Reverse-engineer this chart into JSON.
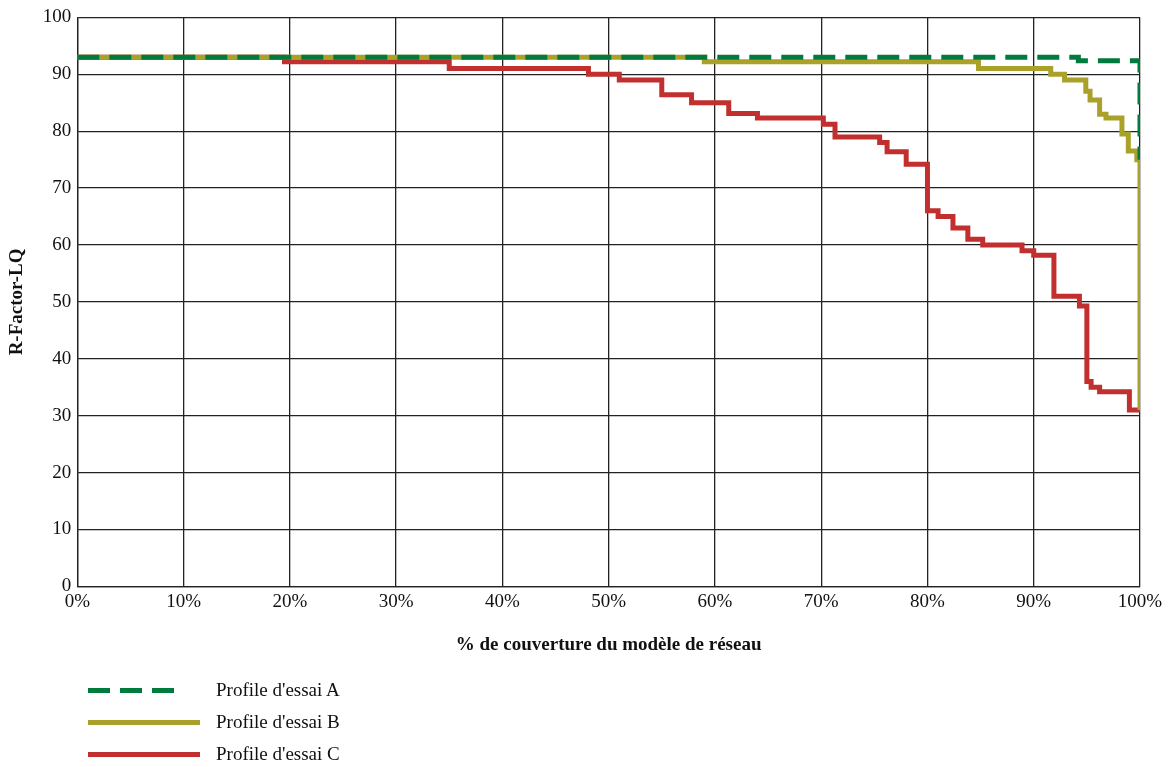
{
  "chart_data": {
    "type": "step",
    "xlabel": "% de couverture du modèle de réseau",
    "ylabel": "R-Factor-LQ",
    "xlim": [
      0,
      100
    ],
    "xticks": [
      {
        "value": 0,
        "label": "0%"
      },
      {
        "value": 10,
        "label": "10%"
      },
      {
        "value": 20,
        "label": "20%"
      },
      {
        "value": 30,
        "label": "30%"
      },
      {
        "value": 40,
        "label": "40%"
      },
      {
        "value": 50,
        "label": "50%"
      },
      {
        "value": 60,
        "label": "60%"
      },
      {
        "value": 70,
        "label": "70%"
      },
      {
        "value": 80,
        "label": "80%"
      },
      {
        "value": 90,
        "label": "90%"
      },
      {
        "value": 100,
        "label": "100%"
      }
    ],
    "ylim": [
      0,
      100
    ],
    "yticks": [
      0,
      10,
      20,
      30,
      40,
      50,
      60,
      70,
      80,
      90,
      100
    ],
    "grid": true,
    "legend": "bottom left",
    "marker": "none",
    "series": [
      {
        "name": "Profile d'essai A",
        "color": "#007a3d",
        "line_style": "dashed",
        "x": [
          0,
          94.2,
          100
        ],
        "values": [
          93,
          92.4,
          75
        ]
      },
      {
        "name": "Profile d'essai B",
        "color": "#aaa12b",
        "line_style": "solid",
        "x": [
          0,
          59,
          84.8,
          91.6,
          92.9,
          94.9,
          95.3,
          96.2,
          96.8,
          98.3,
          98.9,
          99.7,
          100
        ],
        "values": [
          93,
          92.2,
          91,
          90,
          89,
          87,
          85.5,
          83,
          82.3,
          79.5,
          76.5,
          75,
          31
        ]
      },
      {
        "name": "Profile d'essai C",
        "color": "#c22f2f",
        "line_style": "solid",
        "x": [
          0,
          19.5,
          35,
          48.1,
          51,
          55,
          57.8,
          61.3,
          64,
          70.2,
          71.3,
          75.5,
          76.2,
          78,
          80,
          81,
          82.4,
          83.8,
          85.2,
          88.9,
          90,
          91.9,
          94.3,
          95,
          95.4,
          96.2,
          99,
          100
        ],
        "values": [
          93,
          92.2,
          91,
          90,
          89,
          86.4,
          85,
          83.1,
          82.3,
          81.2,
          79,
          78,
          76.4,
          74.2,
          66,
          65,
          63,
          61,
          60,
          59,
          58.2,
          51,
          49.3,
          36,
          35,
          34.2,
          31,
          31
        ]
      }
    ]
  }
}
